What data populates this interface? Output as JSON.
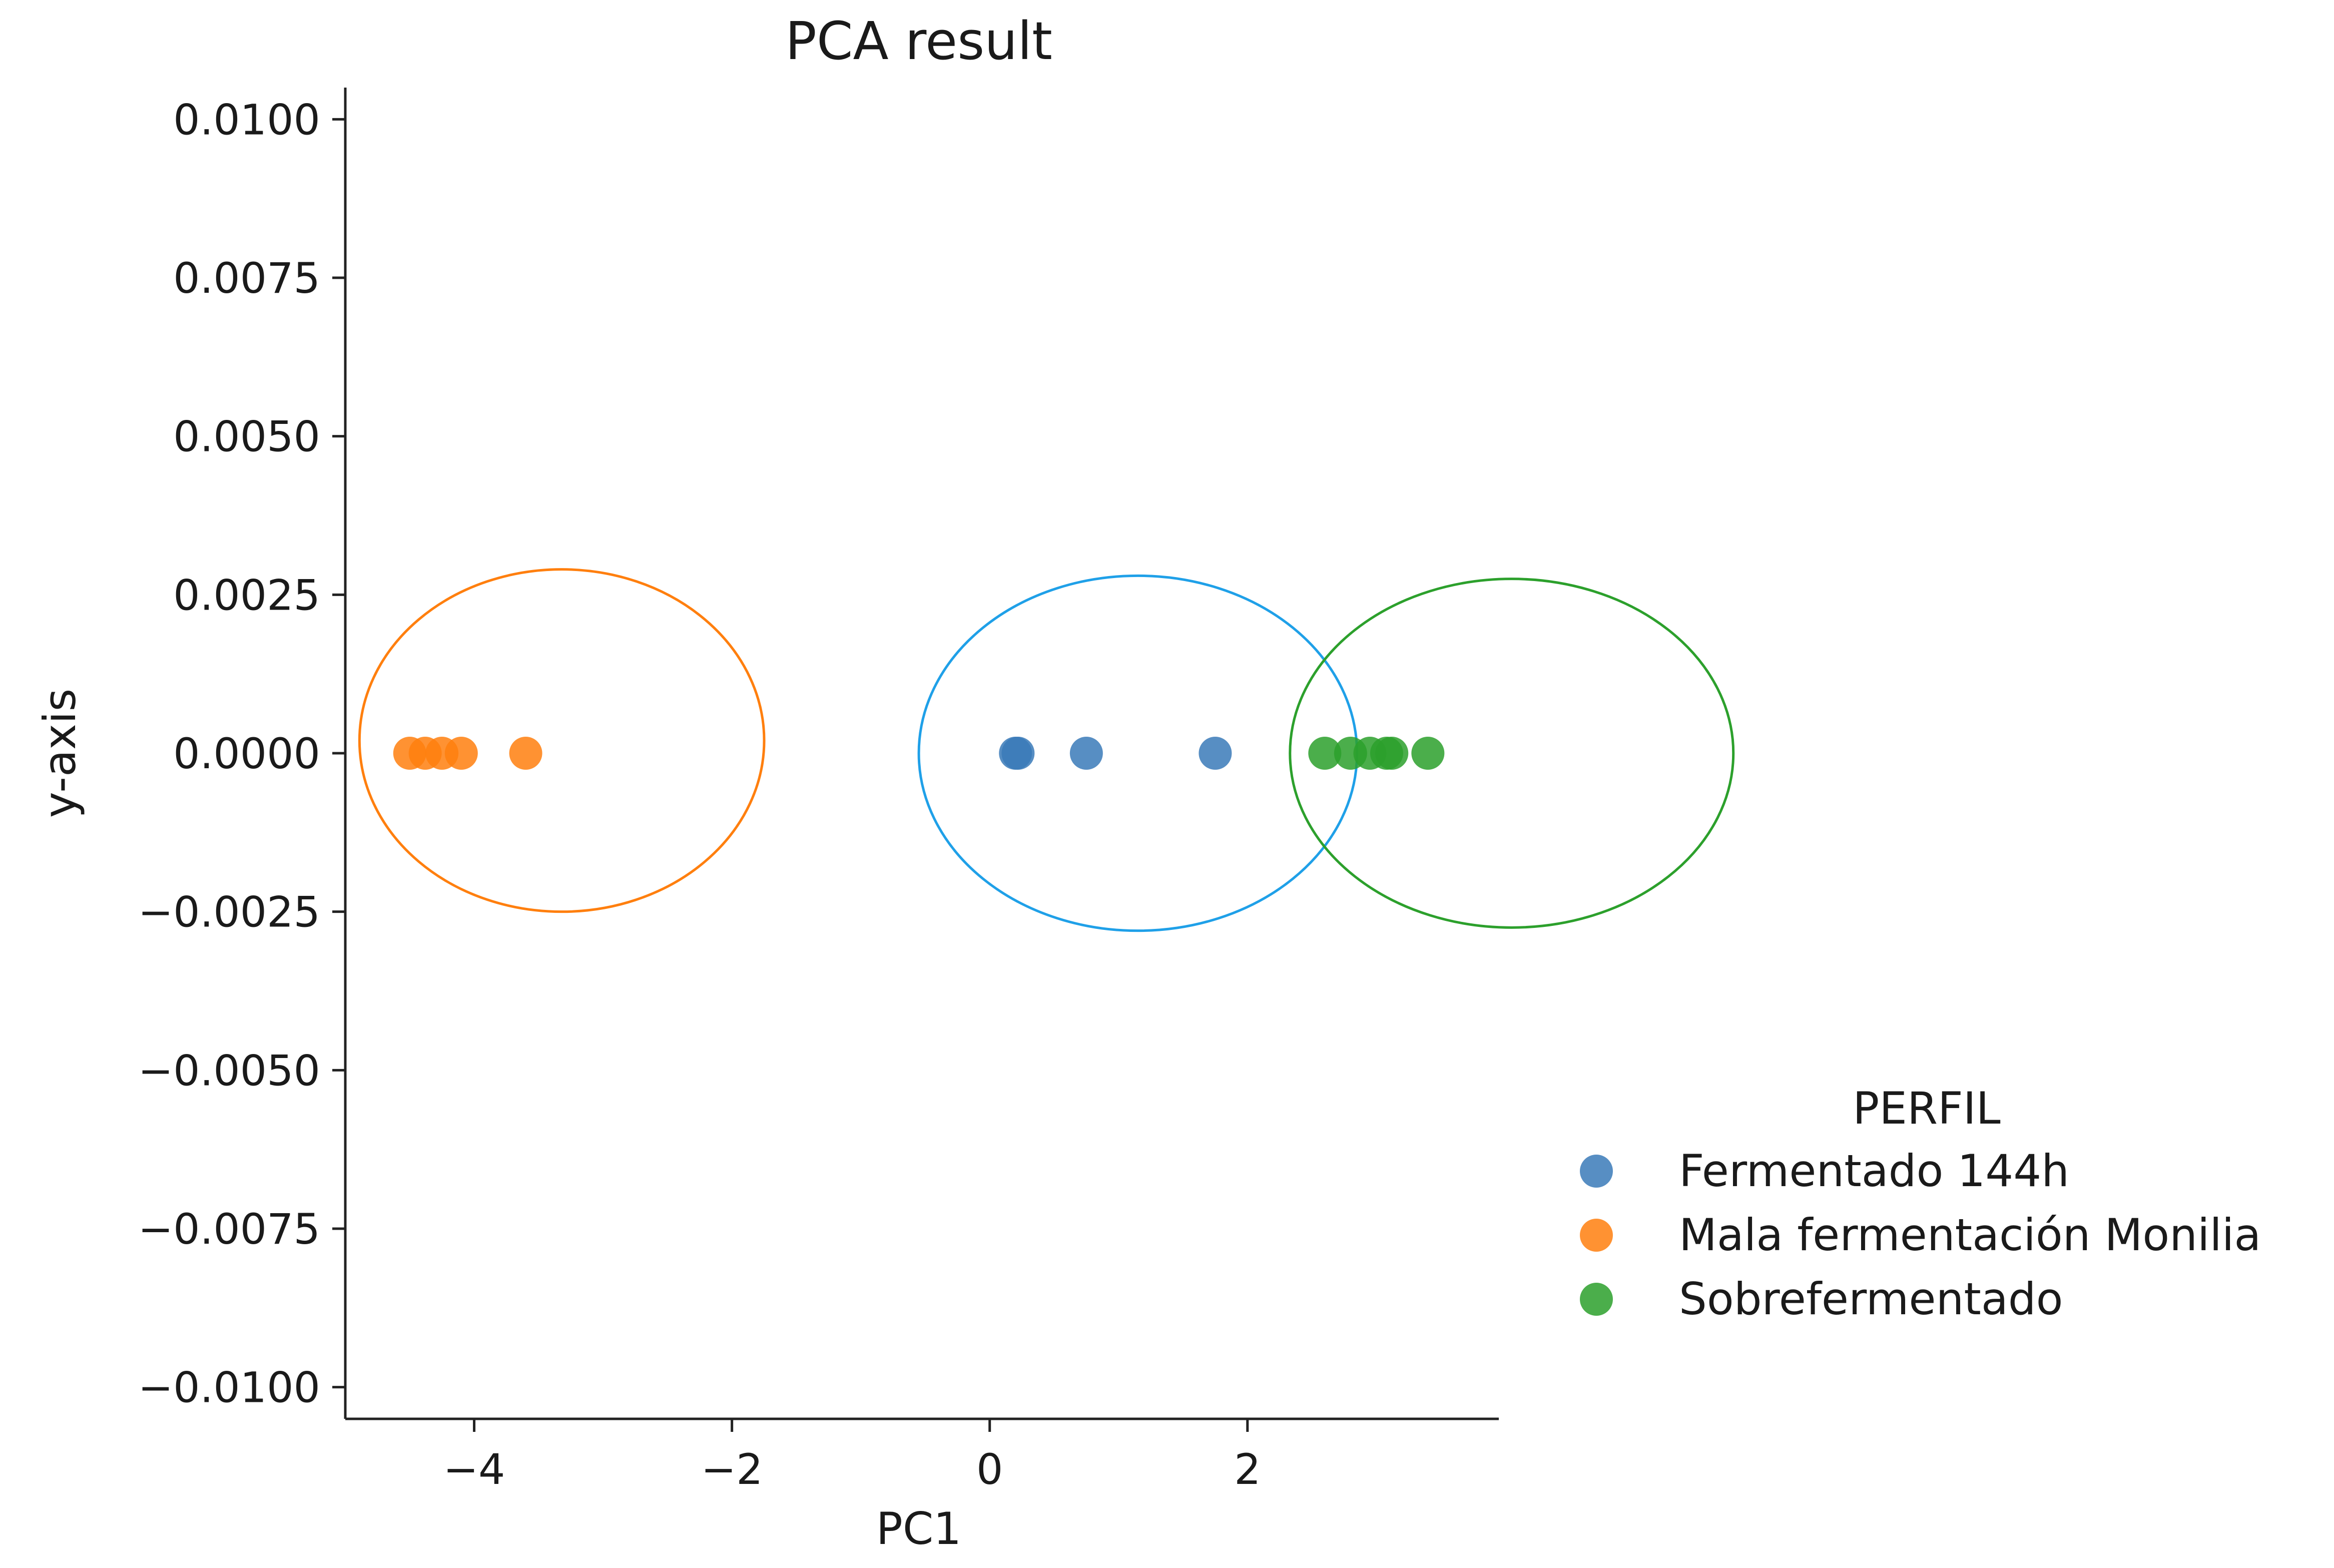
{
  "chart_data": {
    "type": "scatter",
    "title": "PCA result",
    "xlabel": "PC1",
    "ylabel": "y-axis",
    "xlim": [
      -5.0,
      3.95
    ],
    "ylim": [
      -0.0105,
      0.0105
    ],
    "xticks": [
      -4,
      -2,
      0,
      2
    ],
    "xtick_labels": [
      "−4",
      "−2",
      "0",
      "2"
    ],
    "yticks": [
      0.01,
      0.0075,
      0.005,
      0.0025,
      0.0,
      -0.0025,
      -0.005,
      -0.0075,
      -0.01
    ],
    "ytick_labels": [
      "0.0100",
      "0.0075",
      "0.0050",
      "0.0025",
      "0.0000",
      "−0.0025",
      "−0.0050",
      "−0.0075",
      "−0.0100"
    ],
    "grid": false,
    "legend": {
      "title": "PERFIL",
      "position": "right"
    },
    "series": [
      {
        "name": "Fermentado 144h",
        "color": "#3a7ab8",
        "ellipse_color": "#1fa0e8",
        "points": [
          [
            0.2,
            0.0
          ],
          [
            0.22,
            0.0
          ],
          [
            0.75,
            0.0
          ],
          [
            1.75,
            0.0
          ]
        ],
        "ellipse": {
          "cx": 1.15,
          "cy": 0.0,
          "rx": 1.7,
          "ry": 0.0028
        }
      },
      {
        "name": "Mala fermentación Monilia",
        "color": "#ff7f0e",
        "ellipse_color": "#ff7f0e",
        "points": [
          [
            -4.5,
            0.0
          ],
          [
            -4.38,
            0.0
          ],
          [
            -4.25,
            0.0
          ],
          [
            -4.1,
            0.0
          ],
          [
            -3.6,
            0.0
          ]
        ],
        "ellipse": {
          "cx": -3.32,
          "cy": 0.0002,
          "rx": 1.57,
          "ry": 0.0027
        }
      },
      {
        "name": "Sobrefermentado",
        "color": "#2ca02c",
        "ellipse_color": "#2ca02c",
        "points": [
          [
            2.6,
            0.0
          ],
          [
            2.8,
            0.0
          ],
          [
            2.95,
            0.0
          ],
          [
            3.08,
            0.0
          ],
          [
            3.12,
            0.0
          ],
          [
            3.4,
            0.0
          ]
        ],
        "ellipse": {
          "cx": 4.05,
          "cy": 0.0,
          "rx": 1.72,
          "ry": 0.00275
        }
      }
    ]
  }
}
